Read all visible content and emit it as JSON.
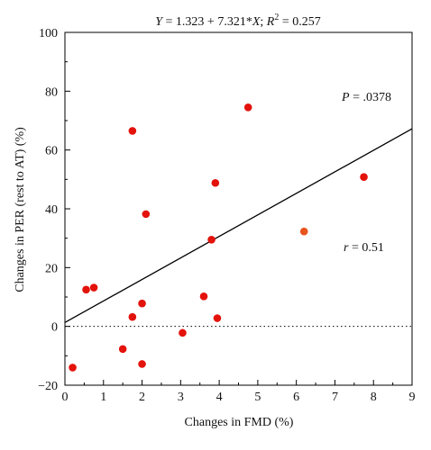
{
  "chart_data": {
    "type": "scatter",
    "title": "Y = 1.323 + 7.321*X; R² = 0.257",
    "title_parts": {
      "y": "Y",
      "eq_middle": " = 1.323 + 7.321*",
      "x": "X",
      "r2_sep": "; ",
      "r2": "R",
      "r2_sup": "2",
      "r2_value": " = 0.257"
    },
    "xlabel": "Changes in FMD (%)",
    "ylabel": "Changes in PER (rest to AT) (%)",
    "xlim": [
      0,
      9
    ],
    "ylim": [
      -20,
      100
    ],
    "x_ticks": [
      0,
      1,
      2,
      3,
      4,
      5,
      6,
      7,
      8,
      9
    ],
    "y_ticks": [
      -20,
      0,
      20,
      40,
      60,
      80,
      100
    ],
    "grid": false,
    "legend": "none",
    "regression": {
      "intercept": 1.323,
      "slope": 7.321,
      "x_range": [
        0,
        9
      ]
    },
    "reference_line": {
      "y": 0,
      "style": "dotted"
    },
    "annotations": {
      "p_symbol": "P",
      "p_value": " = .0378",
      "r_symbol": "r",
      "r_value": " = 0.51"
    },
    "colors": {
      "point": "#e3120b",
      "point_highlight": "#e8541e",
      "line": "#000000",
      "axis": "#000000"
    },
    "points": [
      {
        "x": 0.2,
        "y": -14
      },
      {
        "x": 0.55,
        "y": 12.5
      },
      {
        "x": 0.75,
        "y": 13.2
      },
      {
        "x": 1.5,
        "y": -7.7
      },
      {
        "x": 1.75,
        "y": 3.2
      },
      {
        "x": 1.75,
        "y": 66.5
      },
      {
        "x": 2.0,
        "y": 7.8
      },
      {
        "x": 2.0,
        "y": -12.8
      },
      {
        "x": 2.1,
        "y": 38.2
      },
      {
        "x": 3.05,
        "y": -2.2
      },
      {
        "x": 3.6,
        "y": 10.2
      },
      {
        "x": 3.8,
        "y": 29.5
      },
      {
        "x": 3.9,
        "y": 48.8
      },
      {
        "x": 3.95,
        "y": 2.8
      },
      {
        "x": 4.75,
        "y": 74.5
      },
      {
        "x": 6.2,
        "y": 32.3,
        "highlight": true
      },
      {
        "x": 7.75,
        "y": 50.8
      }
    ]
  }
}
